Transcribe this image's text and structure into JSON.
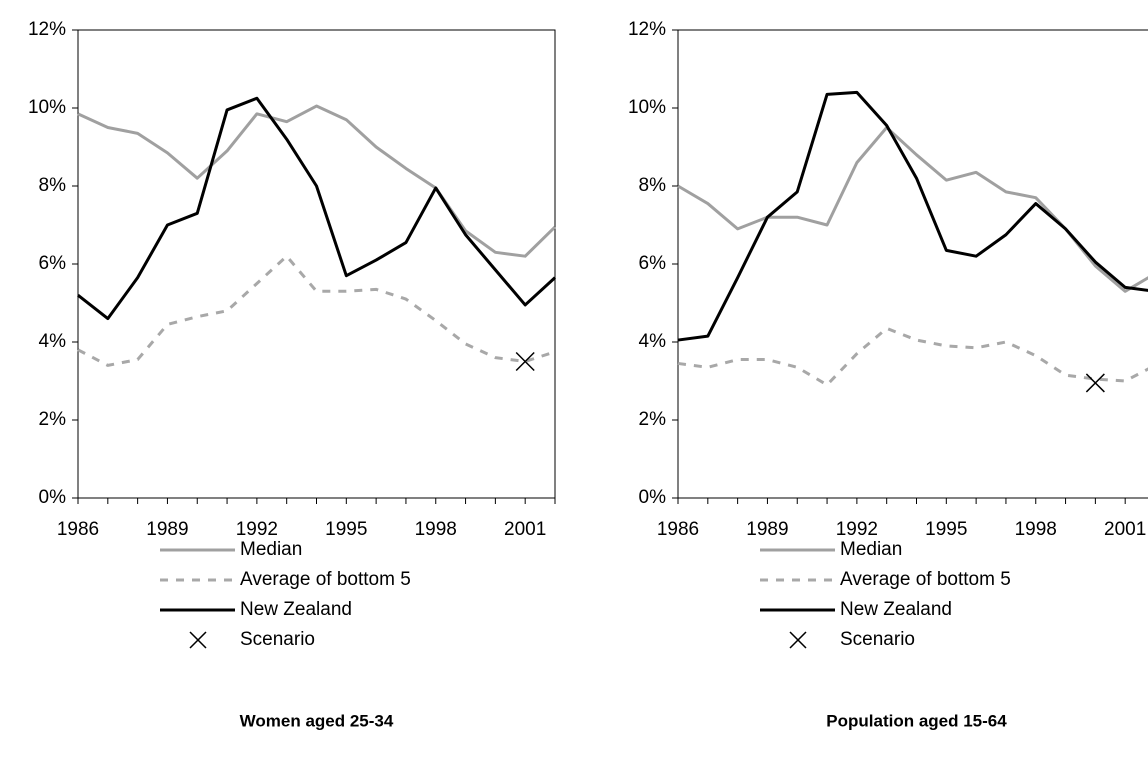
{
  "chart_data": [
    {
      "type": "line",
      "title": "Women aged 25-34",
      "x": [
        1986,
        1987,
        1988,
        1989,
        1990,
        1991,
        1992,
        1993,
        1994,
        1995,
        1996,
        1997,
        1998,
        1999,
        2000,
        2001,
        2002
      ],
      "series": [
        {
          "name": "Median",
          "color": "#a0a0a0",
          "style": "solid",
          "values": [
            9.85,
            9.5,
            9.35,
            8.85,
            8.2,
            8.9,
            9.85,
            9.65,
            10.05,
            9.7,
            9.0,
            8.45,
            7.95,
            6.85,
            6.3,
            6.2,
            6.95
          ]
        },
        {
          "name": "Average of bottom 5",
          "color": "#a8a8a8",
          "style": "dashed",
          "values": [
            3.8,
            3.4,
            3.55,
            4.45,
            4.65,
            4.8,
            5.5,
            6.2,
            5.3,
            5.3,
            5.35,
            5.1,
            4.55,
            3.95,
            3.6,
            3.5,
            3.75
          ]
        },
        {
          "name": "New Zealand",
          "color": "#000000",
          "style": "solid",
          "values": [
            5.2,
            4.6,
            5.65,
            7.0,
            7.3,
            9.95,
            10.25,
            9.2,
            8.0,
            5.7,
            6.1,
            6.55,
            7.95,
            6.75,
            5.85,
            4.95,
            5.65
          ]
        },
        {
          "name": "Scenario",
          "color": "#000000",
          "style": "marker",
          "x": [
            2001
          ],
          "values": [
            3.5
          ]
        }
      ],
      "xlim": [
        1986,
        2002
      ],
      "xticks": [
        1986,
        1989,
        1992,
        1995,
        1998,
        2001
      ],
      "ylim": [
        0,
        12
      ],
      "yticks": [
        {
          "value": 0,
          "label": "0%"
        },
        {
          "value": 2,
          "label": "2%"
        },
        {
          "value": 4,
          "label": "4%"
        },
        {
          "value": 6,
          "label": "6%"
        },
        {
          "value": 8,
          "label": "8%"
        },
        {
          "value": 10,
          "label": "10%"
        },
        {
          "value": 12,
          "label": "12%"
        }
      ]
    },
    {
      "type": "line",
      "title": "Population aged 15-64",
      "x": [
        1986,
        1987,
        1988,
        1989,
        1990,
        1991,
        1992,
        1993,
        1994,
        1995,
        1996,
        1997,
        1998,
        1999,
        2000,
        2001,
        2002
      ],
      "series": [
        {
          "name": "Median",
          "color": "#a0a0a0",
          "style": "solid",
          "values": [
            8.0,
            7.55,
            6.9,
            7.2,
            7.2,
            7.0,
            8.6,
            9.5,
            8.8,
            8.15,
            8.35,
            7.85,
            7.7,
            6.9,
            5.95,
            5.3,
            5.75
          ]
        },
        {
          "name": "Average of bottom 5",
          "color": "#a8a8a8",
          "style": "dashed",
          "values": [
            3.45,
            3.35,
            3.55,
            3.55,
            3.35,
            2.9,
            3.7,
            4.35,
            4.05,
            3.9,
            3.85,
            4.0,
            3.65,
            3.15,
            3.05,
            3.0,
            3.4
          ]
        },
        {
          "name": "New Zealand",
          "color": "#000000",
          "style": "solid",
          "values": [
            4.05,
            4.15,
            5.65,
            7.2,
            7.85,
            10.35,
            10.4,
            9.55,
            8.2,
            6.35,
            6.2,
            6.75,
            7.55,
            6.9,
            6.05,
            5.4,
            5.3
          ]
        },
        {
          "name": "Scenario",
          "color": "#000000",
          "style": "marker",
          "x": [
            2000
          ],
          "values": [
            2.95
          ]
        }
      ],
      "xlim": [
        1986,
        2002
      ],
      "xticks": [
        1986,
        1989,
        1992,
        1995,
        1998,
        2001
      ],
      "ylim": [
        0,
        12
      ],
      "yticks": [
        {
          "value": 0,
          "label": "0%"
        },
        {
          "value": 2,
          "label": "2%"
        },
        {
          "value": 4,
          "label": "4%"
        },
        {
          "value": 6,
          "label": "6%"
        },
        {
          "value": 8,
          "label": "8%"
        },
        {
          "value": 10,
          "label": "10%"
        },
        {
          "value": 12,
          "label": "12%"
        }
      ]
    }
  ]
}
